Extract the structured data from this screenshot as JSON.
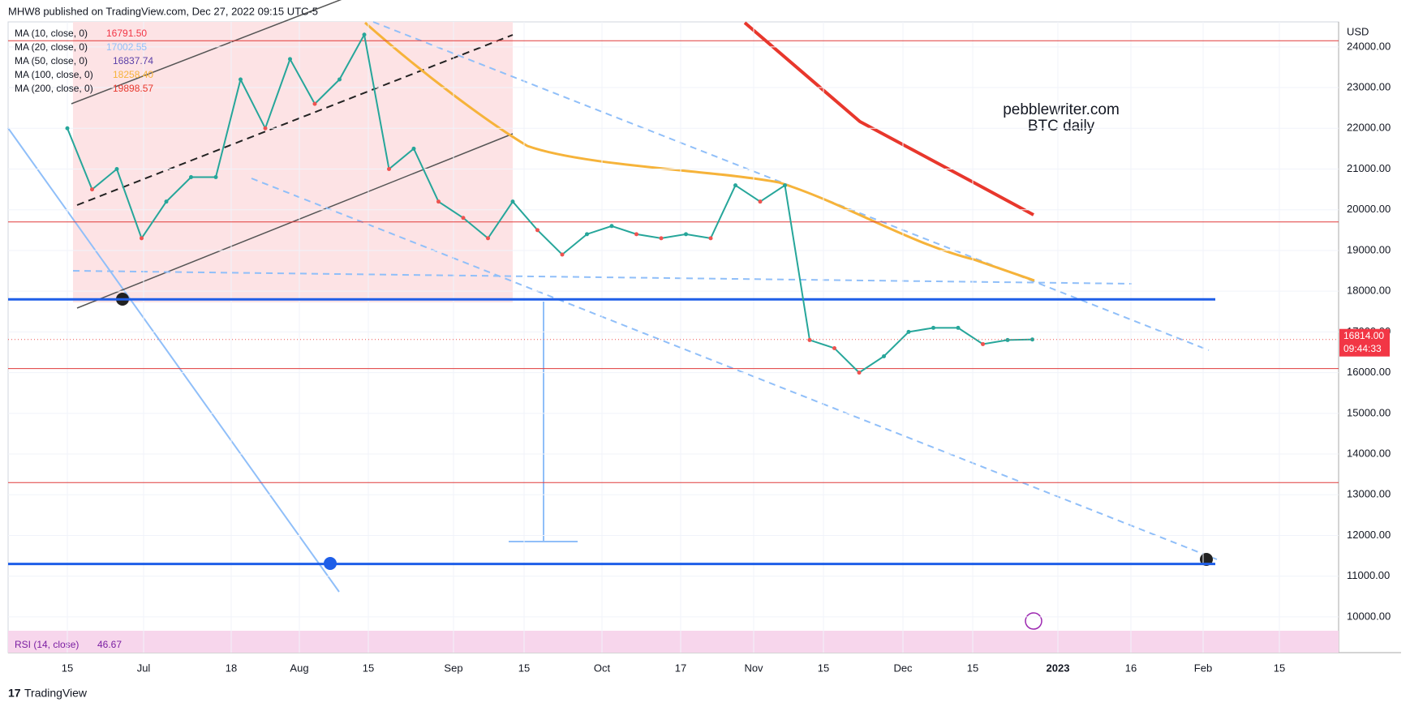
{
  "header": {
    "title": "MHW8 published on TradingView.com, Dec 27, 2022 09:15 UTC-5"
  },
  "legend": [
    {
      "name": "MA (10, close, 0)",
      "value": "16791.50",
      "color": "#f23645"
    },
    {
      "name": "MA (20, close, 0)",
      "value": "17002.55",
      "color": "#90bff9"
    },
    {
      "name": "MA (50, close, 0)",
      "value": "16837.74",
      "color": "#5b3fa8"
    },
    {
      "name": "MA (100, close, 0)",
      "value": "18258.40",
      "color": "#f6b33a"
    },
    {
      "name": "MA (200, close, 0)",
      "value": "19898.57",
      "color": "#e8372c"
    }
  ],
  "watermark": [
    "pebblewriter.com",
    "BTC daily"
  ],
  "rsi": {
    "name": "RSI (14, close)",
    "value": "46.67"
  },
  "footer": "TradingView",
  "chart_data": {
    "type": "line",
    "currency": "USD",
    "values": [
      22000,
      20500,
      21000,
      19300,
      20200,
      20800,
      20800,
      23200,
      22000,
      23700,
      22600,
      23200,
      24300,
      21000,
      21500,
      20200,
      19800,
      19300,
      20200,
      19500,
      18900,
      19400,
      19600,
      19400,
      19300,
      19400,
      19300,
      20600,
      20200,
      20600,
      16800,
      16600,
      16000,
      16400,
      17000,
      17100,
      17100,
      16700,
      16800,
      16814
    ],
    "color": "#26a69a",
    "levels": [
      {
        "value": 24150,
        "color": "#e03a3a"
      },
      {
        "value": 19700,
        "color": "#e03a3a"
      },
      {
        "value": 16100,
        "color": "#e03a3a"
      },
      {
        "value": 13300,
        "color": "#e03a3a"
      },
      {
        "value": 17800,
        "color": "#1e5ee8"
      },
      {
        "value": 11300,
        "color": "#1e5ee8"
      }
    ],
    "ylim": [
      9700,
      24600
    ],
    "yticks": [
      {
        "value": 10000,
        "label": "10000.00"
      },
      {
        "value": 11000,
        "label": "11000.00"
      },
      {
        "value": 12000,
        "label": "12000.00"
      },
      {
        "value": 13000,
        "label": "13000.00"
      },
      {
        "value": 14000,
        "label": "14000.00"
      },
      {
        "value": 15000,
        "label": "15000.00"
      },
      {
        "value": 16000,
        "label": "16000.00"
      },
      {
        "value": 17000,
        "label": "17000.00"
      },
      {
        "value": 18000,
        "label": "18000.00"
      },
      {
        "value": 19000,
        "label": "19000.00"
      },
      {
        "value": 20000,
        "label": "20000.00"
      },
      {
        "value": 21000,
        "label": "21000.00"
      },
      {
        "value": 22000,
        "label": "22000.00"
      },
      {
        "value": 23000,
        "label": "23000.00"
      },
      {
        "value": 24000,
        "label": "24000.00"
      }
    ],
    "xlabels": [
      "15",
      "Jul",
      "18",
      "Aug",
      "15",
      "Sep",
      "15",
      "Oct",
      "17",
      "Nov",
      "15",
      "Dec",
      "15",
      "2023",
      "16",
      "Feb",
      "15"
    ],
    "last_price": {
      "value": 16814,
      "label": "16814.00",
      "countdown": "09:44:33"
    },
    "grid": true
  }
}
